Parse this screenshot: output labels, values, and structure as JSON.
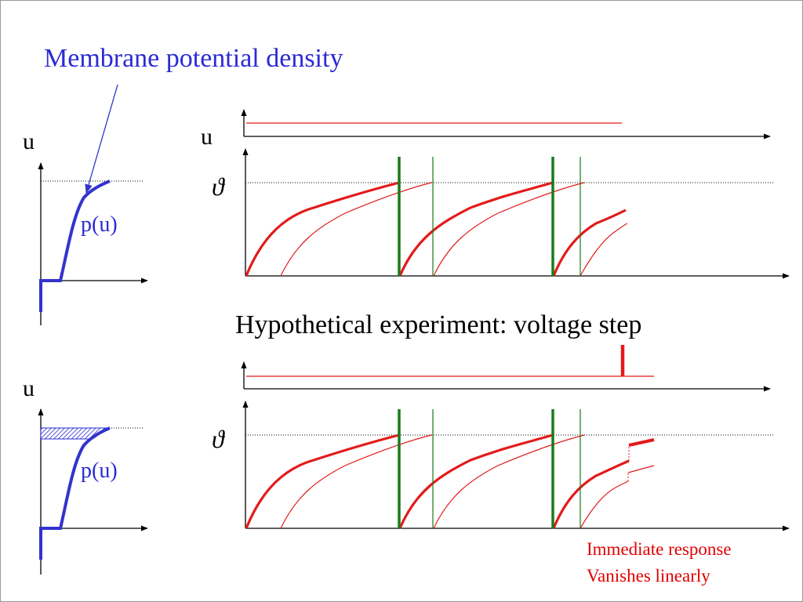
{
  "slide": {
    "title": "Membrane potential density",
    "axis_label_u": "u",
    "density_label": "p(u)",
    "threshold_symbol": "ϑ",
    "experiment_caption": "Hypothetical experiment: voltage step",
    "notes": [
      "Immediate response",
      "Vanishes linearly"
    ]
  },
  "colors": {
    "title_blue": "#2b2bd6",
    "density_curve": "#3333cc",
    "trajectory_red": "#e31a1a",
    "spike_green": "#1a7a1a",
    "note_red": "#e00000",
    "axis": "#000000"
  }
}
